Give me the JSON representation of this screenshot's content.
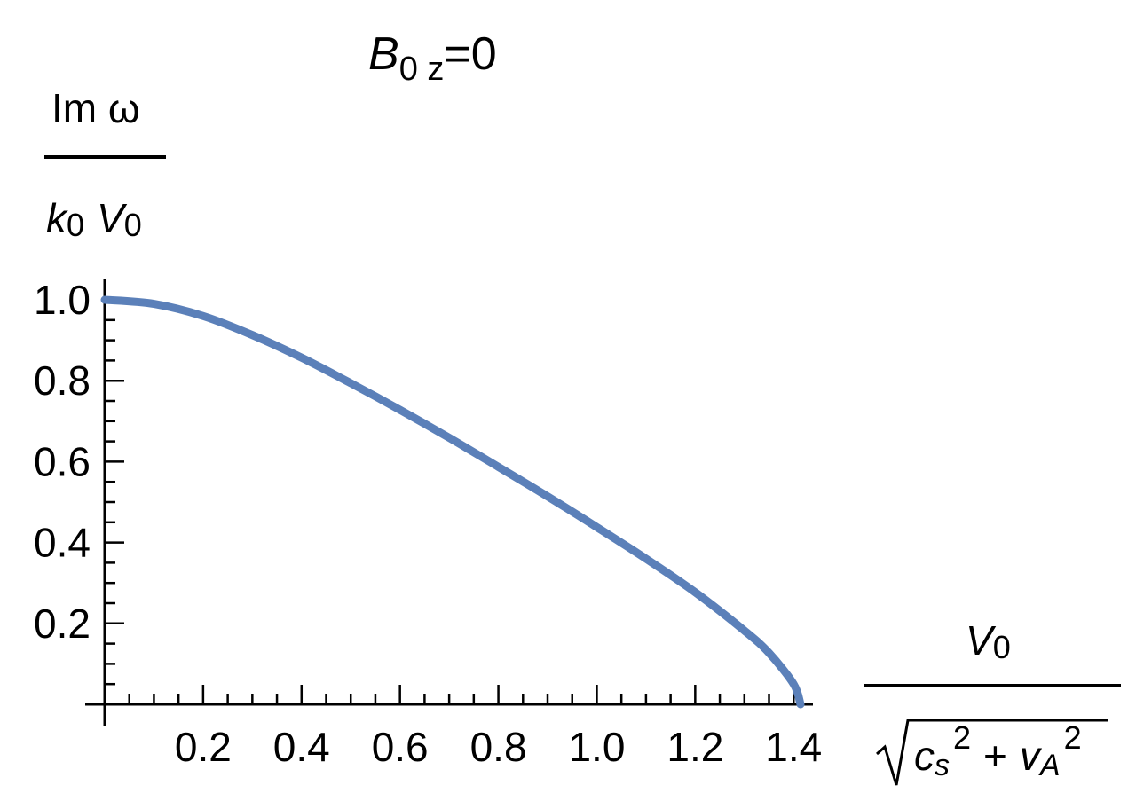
{
  "chart_data": {
    "type": "line",
    "title": {
      "base": "B",
      "sub": "0 z",
      "rest": "=0"
    },
    "ylabel": {
      "numerator": "Im ω",
      "denominator_k": "k",
      "denominator_k_sub": "0",
      "denominator_v": "V",
      "denominator_v_sub": "0"
    },
    "xlabel": {
      "numerator": "V",
      "numerator_sub": "0",
      "denominator_cs": "c",
      "denominator_cs_sub": "s",
      "denominator_cs_sup": "2",
      "plus": "+",
      "denominator_va": "v",
      "denominator_va_sub": "A",
      "denominator_va_sup": "2"
    },
    "xlim": [
      0,
      1.414
    ],
    "ylim": [
      0,
      1.0
    ],
    "x_ticks": [
      "0.2",
      "0.4",
      "0.6",
      "0.8",
      "1.0",
      "1.2",
      "1.4"
    ],
    "y_ticks": [
      "0.2",
      "0.4",
      "0.6",
      "0.8",
      "1.0"
    ],
    "series": [
      {
        "color": "#5b80b9",
        "x": [
          0,
          0.1,
          0.2,
          0.3,
          0.4,
          0.5,
          0.6,
          0.7,
          0.8,
          0.9,
          1.0,
          1.1,
          1.2,
          1.3,
          1.35,
          1.4,
          1.414
        ],
        "y": [
          1.0,
          0.99,
          0.96,
          0.913,
          0.857,
          0.794,
          0.728,
          0.659,
          0.587,
          0.514,
          0.438,
          0.36,
          0.277,
          0.182,
          0.127,
          0.05,
          0.0
        ]
      }
    ]
  }
}
